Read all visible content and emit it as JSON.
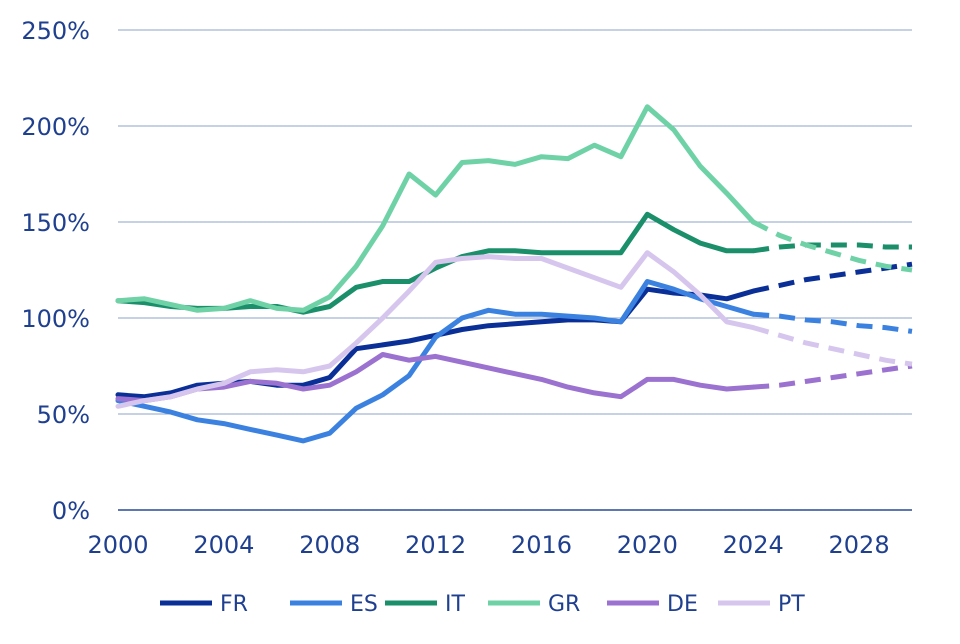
{
  "chart_data": {
    "type": "line",
    "title": "",
    "xlabel": "",
    "ylabel": "",
    "xlim": [
      2000,
      2030
    ],
    "ylim": [
      0,
      250
    ],
    "x_ticks": [
      2000,
      2004,
      2008,
      2012,
      2016,
      2020,
      2024,
      2028
    ],
    "x_tick_labels": [
      "2000",
      "2004",
      "2008",
      "2012",
      "2016",
      "2020",
      "2024",
      "2028"
    ],
    "y_ticks": [
      0,
      50,
      100,
      150,
      200,
      250
    ],
    "y_tick_labels": [
      "0%",
      "50%",
      "100%",
      "150%",
      "200%",
      "250%"
    ],
    "grid": "horizontal",
    "legend_position": "bottom",
    "projection_start": 2024,
    "series": [
      {
        "name": "FR",
        "color": "#0a2f96",
        "x": [
          2000,
          2001,
          2002,
          2003,
          2004,
          2005,
          2006,
          2007,
          2008,
          2009,
          2010,
          2011,
          2012,
          2013,
          2014,
          2015,
          2016,
          2017,
          2018,
          2019,
          2020,
          2021,
          2022,
          2023,
          2024,
          2025,
          2026,
          2027,
          2028,
          2029,
          2030
        ],
        "y": [
          60,
          59,
          61,
          65,
          66,
          67,
          65,
          65,
          69,
          84,
          86,
          88,
          91,
          94,
          96,
          97,
          98,
          99,
          99,
          98,
          115,
          113,
          112,
          110,
          114,
          117,
          120,
          122,
          124,
          126,
          128
        ]
      },
      {
        "name": "ES",
        "color": "#3b82e0",
        "x": [
          2000,
          2001,
          2002,
          2003,
          2004,
          2005,
          2006,
          2007,
          2008,
          2009,
          2010,
          2011,
          2012,
          2013,
          2014,
          2015,
          2016,
          2017,
          2018,
          2019,
          2020,
          2021,
          2022,
          2023,
          2024,
          2025,
          2026,
          2027,
          2028,
          2029,
          2030
        ],
        "y": [
          57,
          54,
          51,
          47,
          45,
          42,
          39,
          36,
          40,
          53,
          60,
          70,
          90,
          100,
          104,
          102,
          102,
          101,
          100,
          98,
          119,
          115,
          110,
          106,
          102,
          101,
          99,
          98,
          96,
          95,
          93
        ]
      },
      {
        "name": "IT",
        "color": "#1b8f6a",
        "x": [
          2000,
          2001,
          2002,
          2003,
          2004,
          2005,
          2006,
          2007,
          2008,
          2009,
          2010,
          2011,
          2012,
          2013,
          2014,
          2015,
          2016,
          2017,
          2018,
          2019,
          2020,
          2021,
          2022,
          2023,
          2024,
          2025,
          2026,
          2027,
          2028,
          2029,
          2030
        ],
        "y": [
          109,
          108,
          106,
          105,
          105,
          106,
          106,
          103,
          106,
          116,
          119,
          119,
          126,
          132,
          135,
          135,
          134,
          134,
          134,
          134,
          154,
          146,
          139,
          135,
          135,
          137,
          138,
          138,
          138,
          137,
          137
        ]
      },
      {
        "name": "GR",
        "color": "#6fd2a6",
        "x": [
          2000,
          2001,
          2002,
          2003,
          2004,
          2005,
          2006,
          2007,
          2008,
          2009,
          2010,
          2011,
          2012,
          2013,
          2014,
          2015,
          2016,
          2017,
          2018,
          2019,
          2020,
          2021,
          2022,
          2023,
          2024,
          2025,
          2026,
          2027,
          2028,
          2029,
          2030
        ],
        "y": [
          109,
          110,
          107,
          104,
          105,
          109,
          105,
          104,
          111,
          127,
          148,
          175,
          164,
          181,
          182,
          180,
          184,
          183,
          190,
          184,
          210,
          198,
          179,
          165,
          150,
          143,
          138,
          134,
          130,
          127,
          125
        ]
      },
      {
        "name": "DE",
        "color": "#9b72cf",
        "x": [
          2000,
          2001,
          2002,
          2003,
          2004,
          2005,
          2006,
          2007,
          2008,
          2009,
          2010,
          2011,
          2012,
          2013,
          2014,
          2015,
          2016,
          2017,
          2018,
          2019,
          2020,
          2021,
          2022,
          2023,
          2024,
          2025,
          2026,
          2027,
          2028,
          2029,
          2030
        ],
        "y": [
          58,
          57,
          59,
          63,
          64,
          67,
          66,
          63,
          65,
          72,
          81,
          78,
          80,
          77,
          74,
          71,
          68,
          64,
          61,
          59,
          68,
          68,
          65,
          63,
          64,
          65,
          67,
          69,
          71,
          73,
          75
        ]
      },
      {
        "name": "PT",
        "color": "#d6c6ee",
        "x": [
          2000,
          2001,
          2002,
          2003,
          2004,
          2005,
          2006,
          2007,
          2008,
          2009,
          2010,
          2011,
          2012,
          2013,
          2014,
          2015,
          2016,
          2017,
          2018,
          2019,
          2020,
          2021,
          2022,
          2023,
          2024,
          2025,
          2026,
          2027,
          2028,
          2029,
          2030
        ],
        "y": [
          54,
          57,
          59,
          63,
          66,
          72,
          73,
          72,
          75,
          87,
          100,
          114,
          129,
          131,
          132,
          131,
          131,
          126,
          121,
          116,
          134,
          124,
          112,
          98,
          95,
          91,
          87,
          84,
          81,
          78,
          76
        ]
      }
    ]
  }
}
